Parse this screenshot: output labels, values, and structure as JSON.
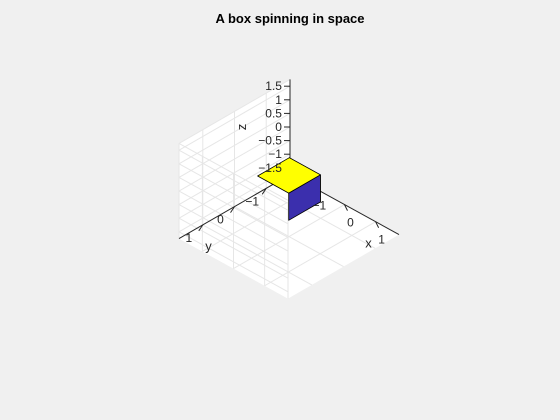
{
  "chart_data": {
    "type": "3d-surface",
    "title": "A box spinning in space",
    "xlabel": "x",
    "ylabel": "y",
    "zlabel": "z",
    "xlim": [
      -1.75,
      1.75
    ],
    "ylim": [
      -1.75,
      1.75
    ],
    "zlim": [
      -1.75,
      1.75
    ],
    "xticks": [
      -1,
      0,
      1
    ],
    "yticks": [
      -1,
      0,
      1
    ],
    "zticks": [
      -1.5,
      -1,
      -0.5,
      0,
      0.5,
      1,
      1.5
    ],
    "grid": true,
    "box": {
      "center": [
        0,
        0,
        0
      ],
      "half_size": 0.5,
      "faces": [
        {
          "name": "top",
          "z": 0.5,
          "color": "#ffff00"
        },
        {
          "name": "front-y",
          "y": -0.5,
          "color": "#3b2fad"
        },
        {
          "name": "front-x",
          "x": 0.5,
          "color": "#3b2fad"
        }
      ]
    }
  },
  "colors": {
    "background": "#f0f0f0",
    "axes_background": "#ffffff",
    "grid": "#e6e6e6",
    "axis_line": "#262626",
    "edge": "#000000"
  }
}
